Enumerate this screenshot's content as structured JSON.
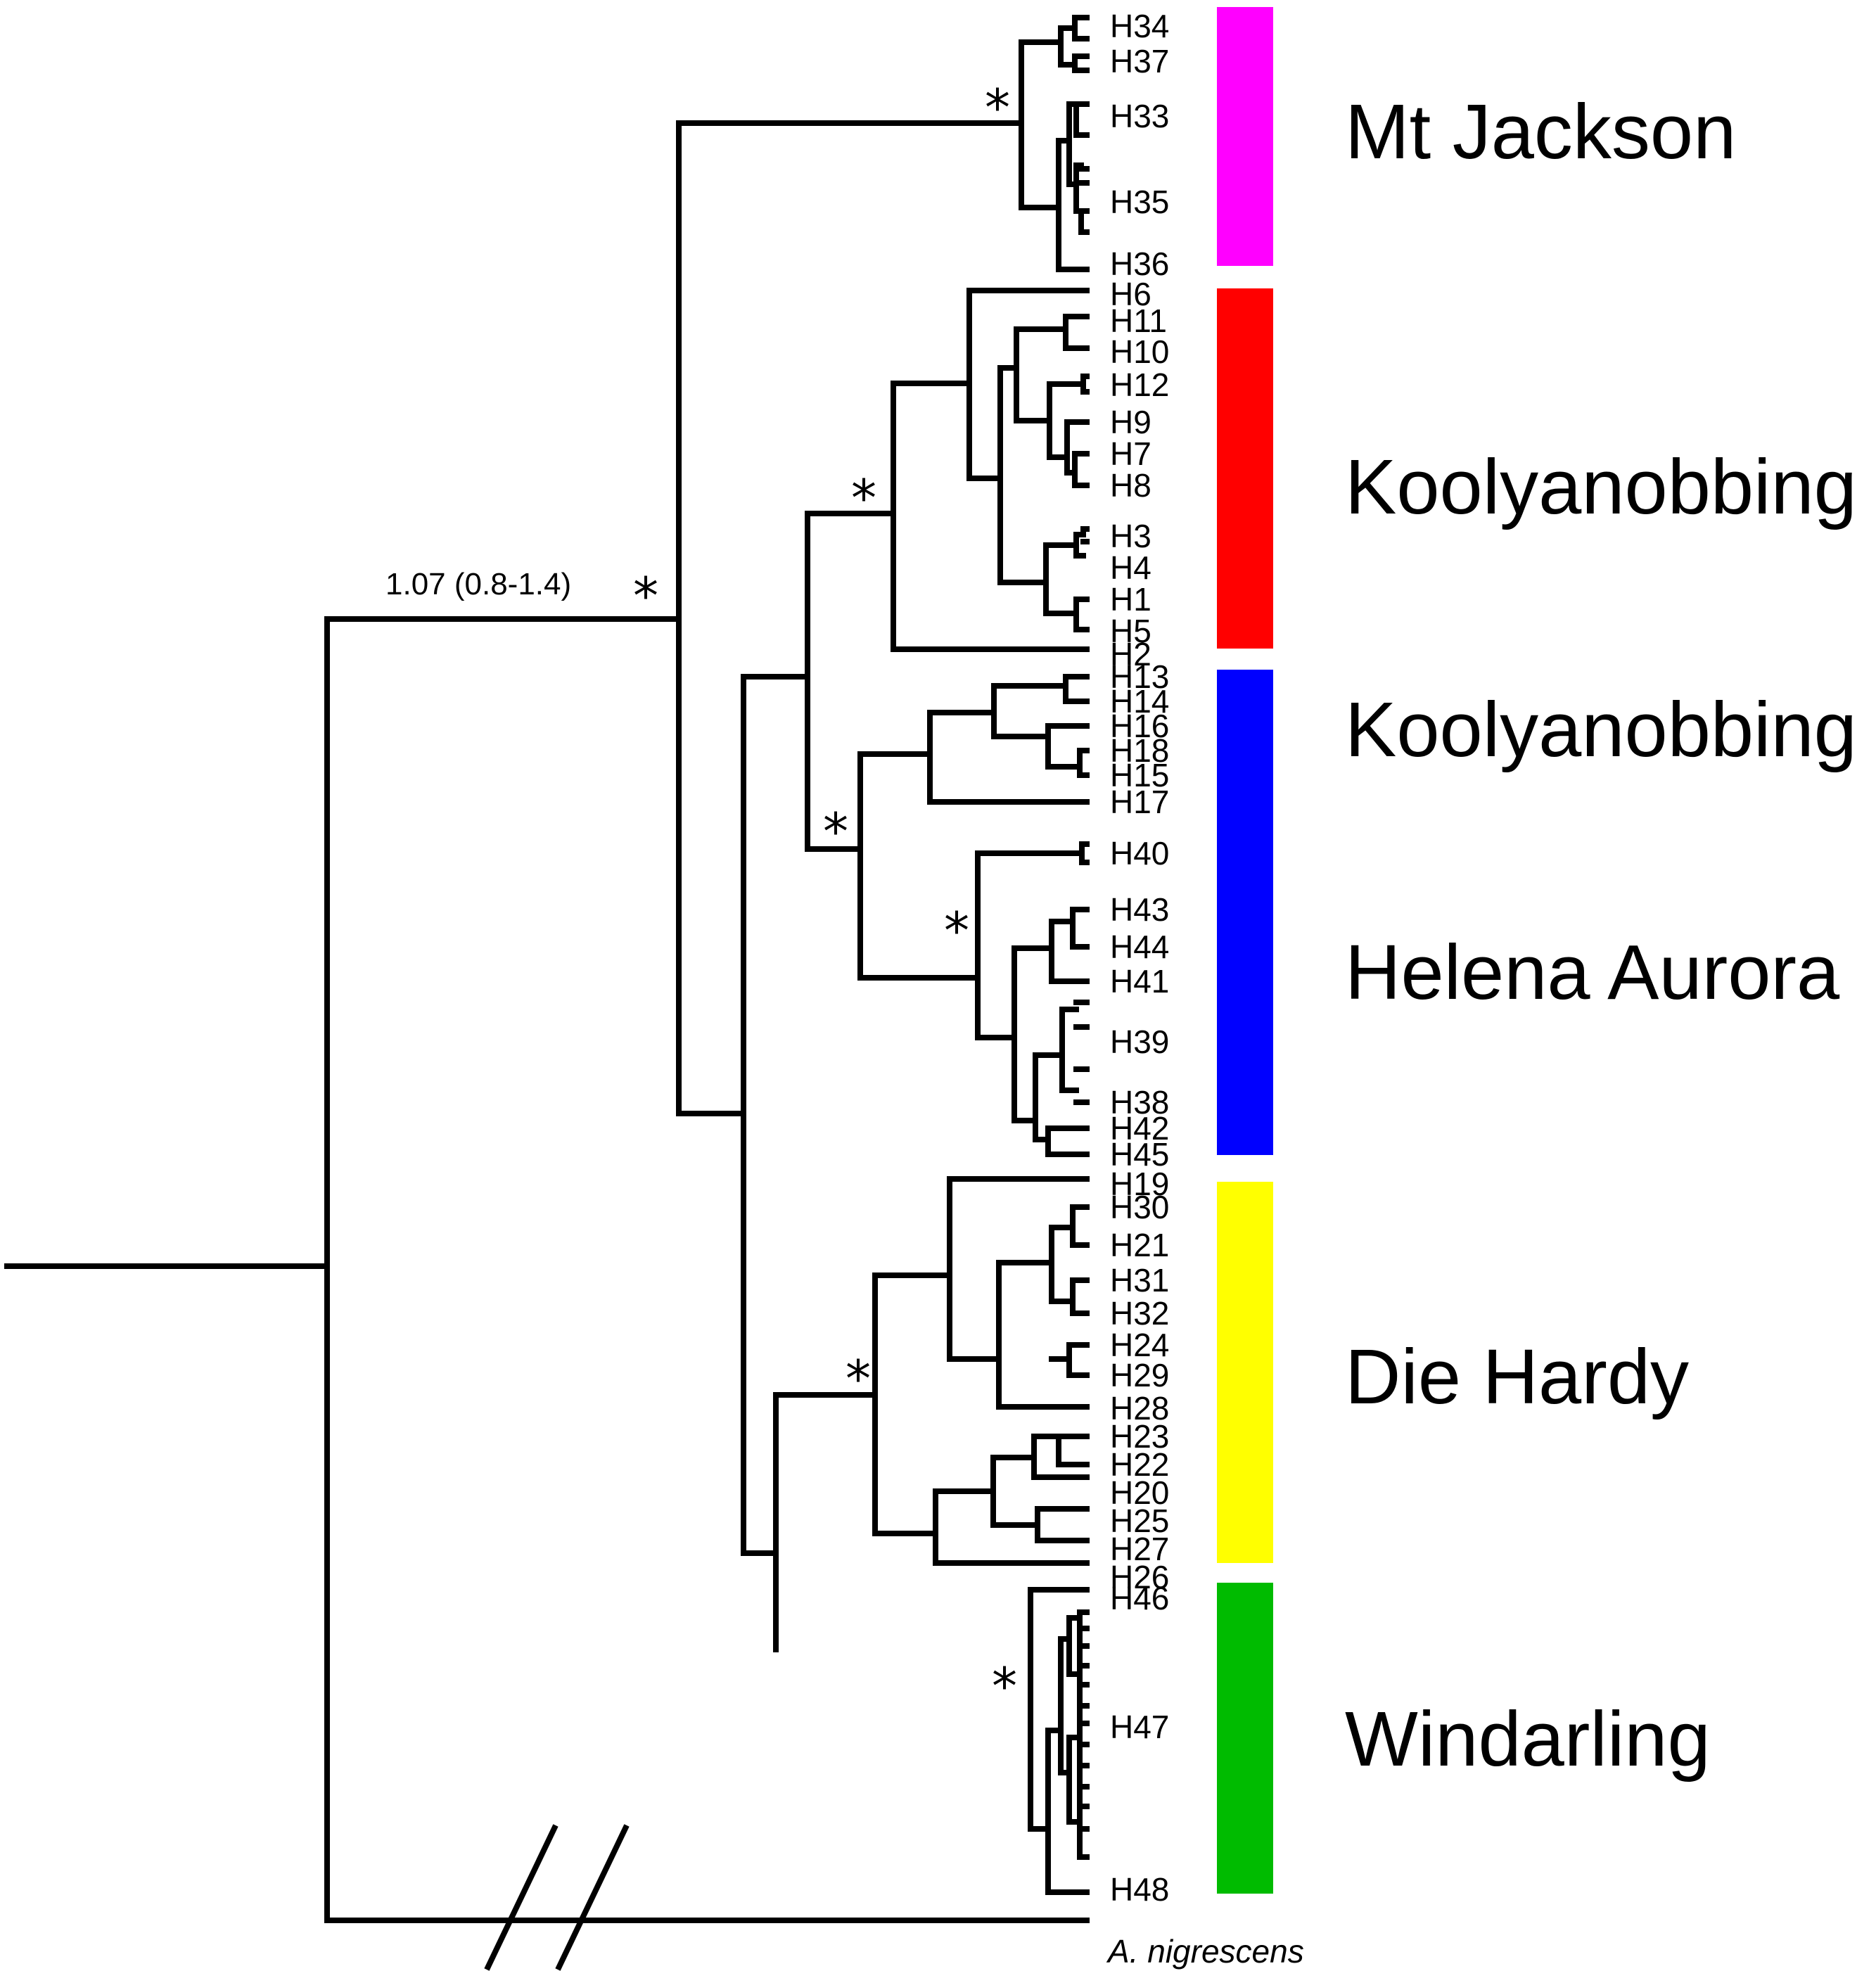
{
  "tree": {
    "root_node_label": "1.07 (0.8-1.4)",
    "support_symbol": "*",
    "outgroup": "A. nigrescens",
    "clades": [
      {
        "label": "Mt Jackson",
        "color": "#ff00ff",
        "tips": [
          "H34",
          "H37",
          "H33",
          "H35",
          "H36"
        ]
      },
      {
        "label": "Koolyanobbing",
        "color": "#ff0000",
        "tips": [
          "H6",
          "H11",
          "H10",
          "H12",
          "H9",
          "H7",
          "H8",
          "H3",
          "H4",
          "H1",
          "H5",
          "H2"
        ]
      },
      {
        "label": "Koolyanobbing",
        "color": "#0000ff",
        "tips": [
          "H13",
          "H14",
          "H16",
          "H18",
          "H15",
          "H17"
        ]
      },
      {
        "label": "Helena Aurora",
        "color": "#0000ff",
        "tips": [
          "H40",
          "H43",
          "H44",
          "H41",
          "H39",
          "H38",
          "H42",
          "H45"
        ]
      },
      {
        "label": "Die Hardy",
        "color": "#ffff00",
        "tips": [
          "H19",
          "H30",
          "H21",
          "H31",
          "H32",
          "H24",
          "H29",
          "H28",
          "H23",
          "H22",
          "H20",
          "H25",
          "H27",
          "H26"
        ]
      },
      {
        "label": "Windarling",
        "color": "#00bb00",
        "tips": [
          "H46",
          "H47",
          "H48"
        ]
      }
    ]
  }
}
